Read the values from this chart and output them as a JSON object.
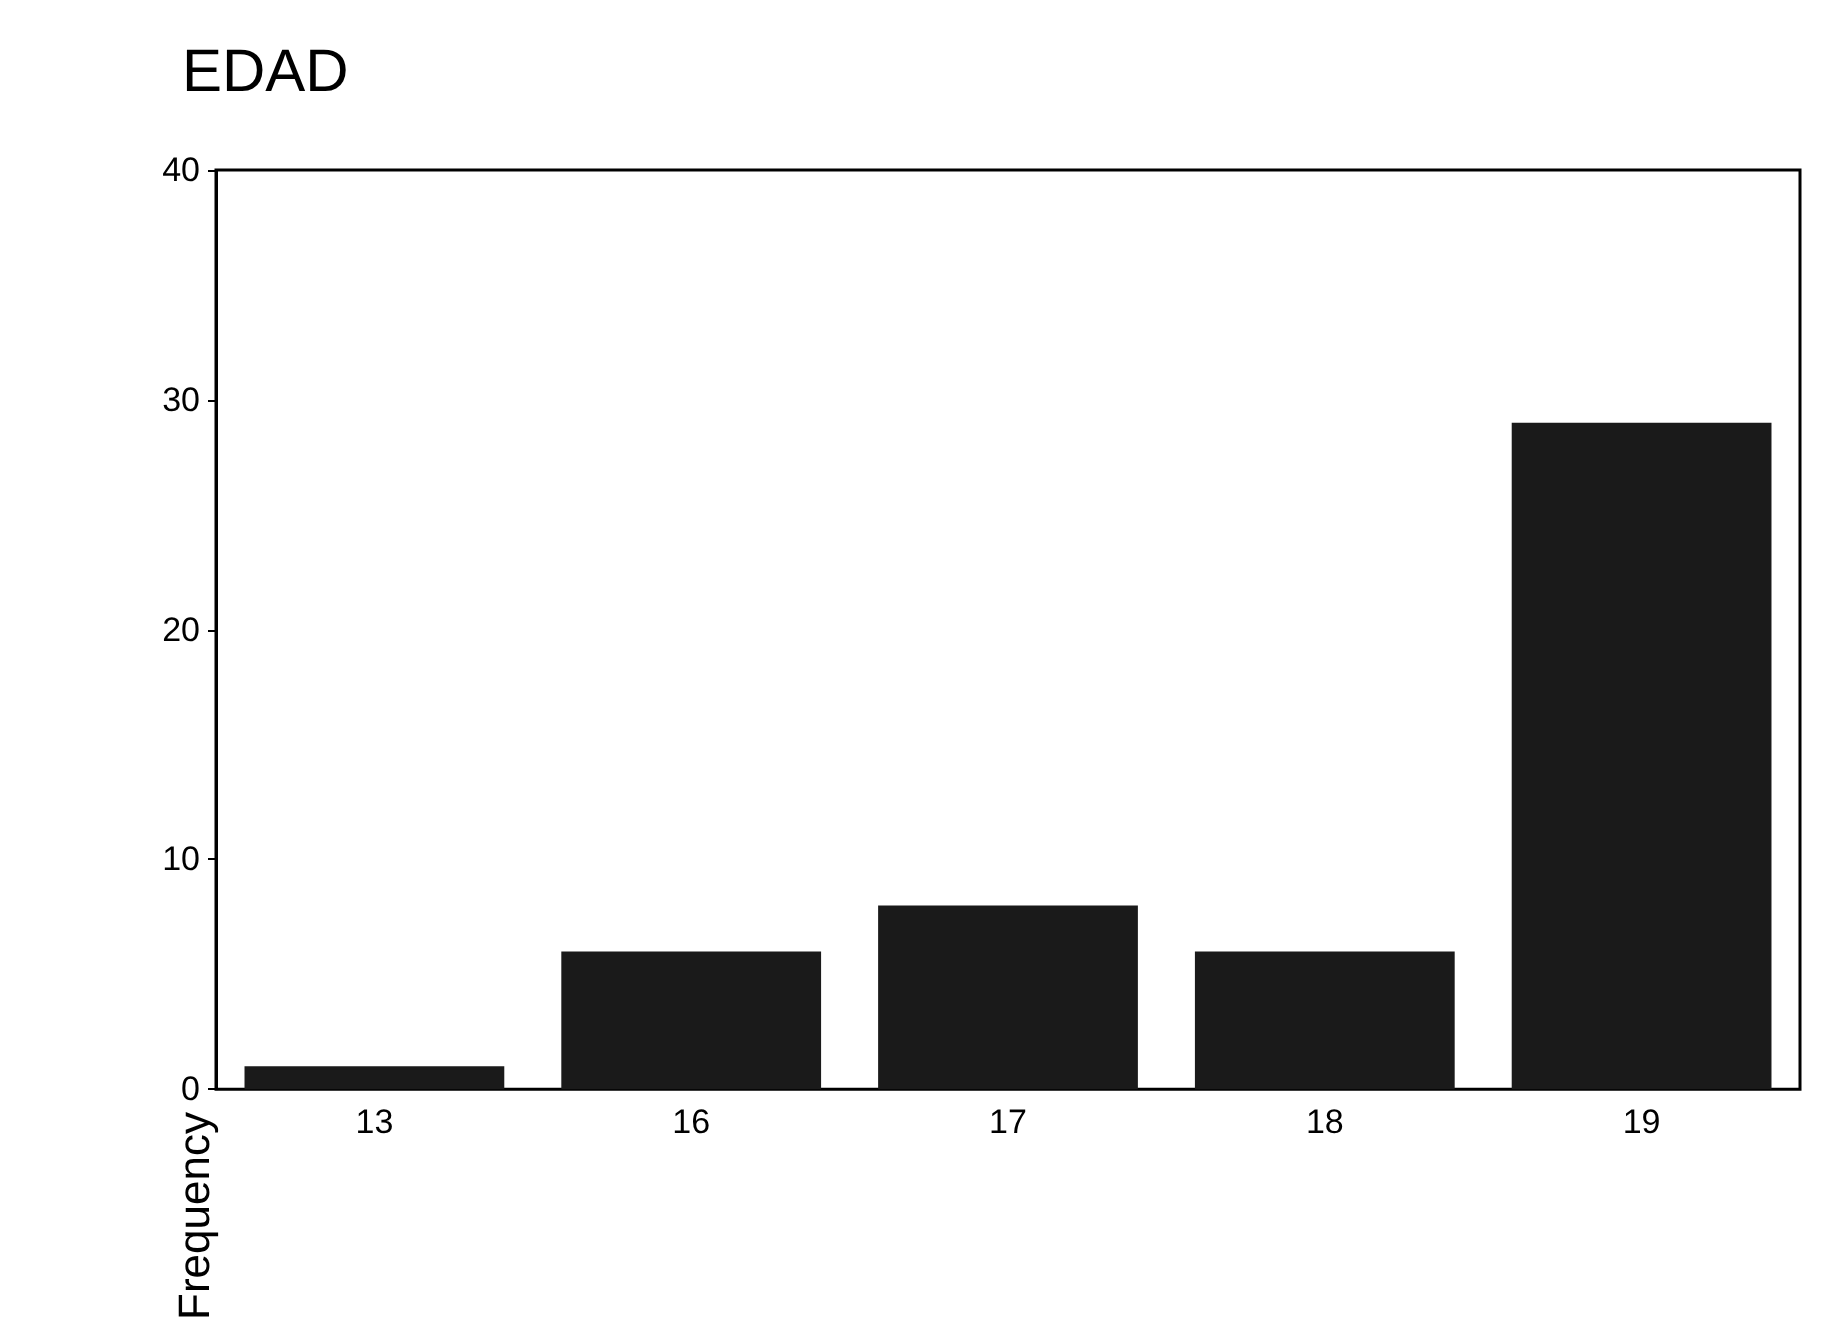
{
  "chart_data": {
    "type": "bar",
    "title": "EDAD",
    "ylabel": "Frequency",
    "categories": [
      "13",
      "16",
      "17",
      "18",
      "19"
    ],
    "values": [
      1,
      6,
      8,
      6,
      29
    ],
    "color": "#1a1a1a",
    "ylim": [
      0,
      40
    ],
    "yticks": [
      0,
      10,
      20,
      30,
      40
    ],
    "grid": false
  }
}
